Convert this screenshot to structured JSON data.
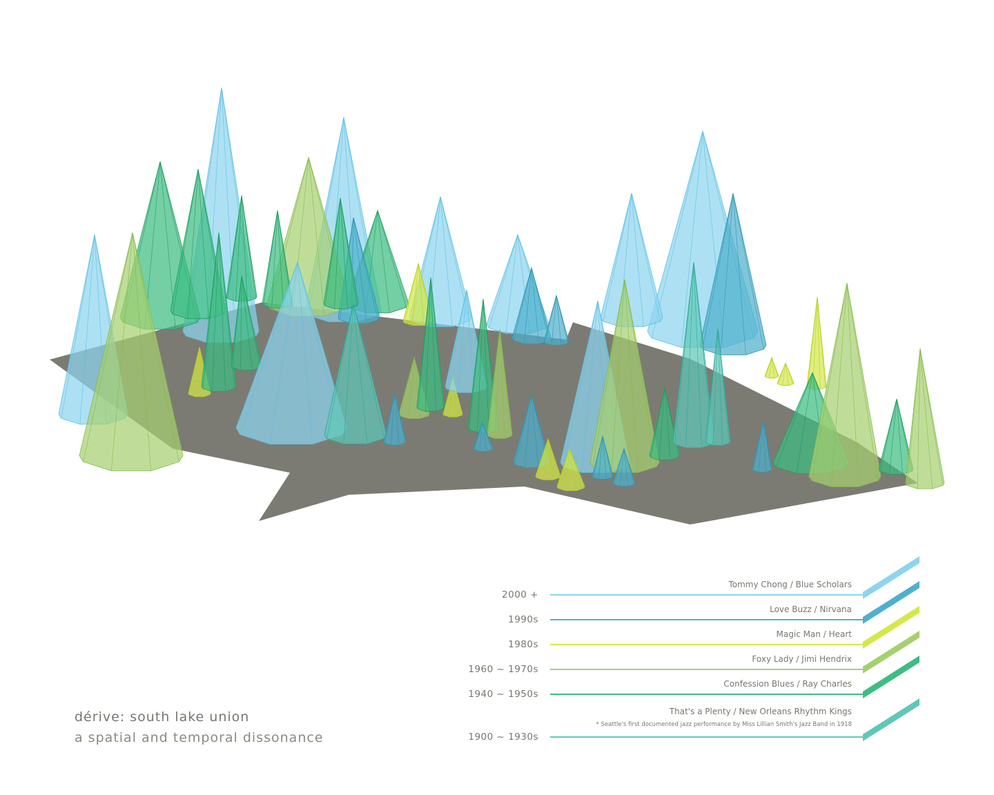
{
  "title": "dérive: south lake union",
  "subtitle": "a spatial and temporal dissonance",
  "colors": {
    "ground": "#7c7b73",
    "c2000": "#8dd4ee",
    "c1990": "#4fb0cc",
    "c1980": "#d4e84a",
    "c1960": "#a6d070",
    "c1940": "#3ebd82",
    "c1900": "#5fc8b8"
  },
  "legend": [
    {
      "era": "2000 +",
      "song": "Tommy Chong / Blue Scholars",
      "note": "",
      "color": "#8dd4ee"
    },
    {
      "era": "1990s",
      "song": "Love Buzz / Nirvana",
      "note": "",
      "color": "#4fb0cc"
    },
    {
      "era": "1980s",
      "song": "Magic Man / Heart",
      "note": "",
      "color": "#d4e84a"
    },
    {
      "era": "1960 ~ 1970s",
      "song": "Foxy Lady / Jimi Hendrix",
      "note": "",
      "color": "#a6d070"
    },
    {
      "era": "1940 ~ 1950s",
      "song": "Confession Blues / Ray Charles",
      "note": "",
      "color": "#3ebd82"
    },
    {
      "era": "1900 ~ 1930s",
      "song": "That's a Plenty / New Orleans Rhythm Kings",
      "note": "* Seattle's first documented jazz performance by Miss Lillian Smith's Jazz Band in 1918",
      "color": "#5fc8b8"
    }
  ]
}
